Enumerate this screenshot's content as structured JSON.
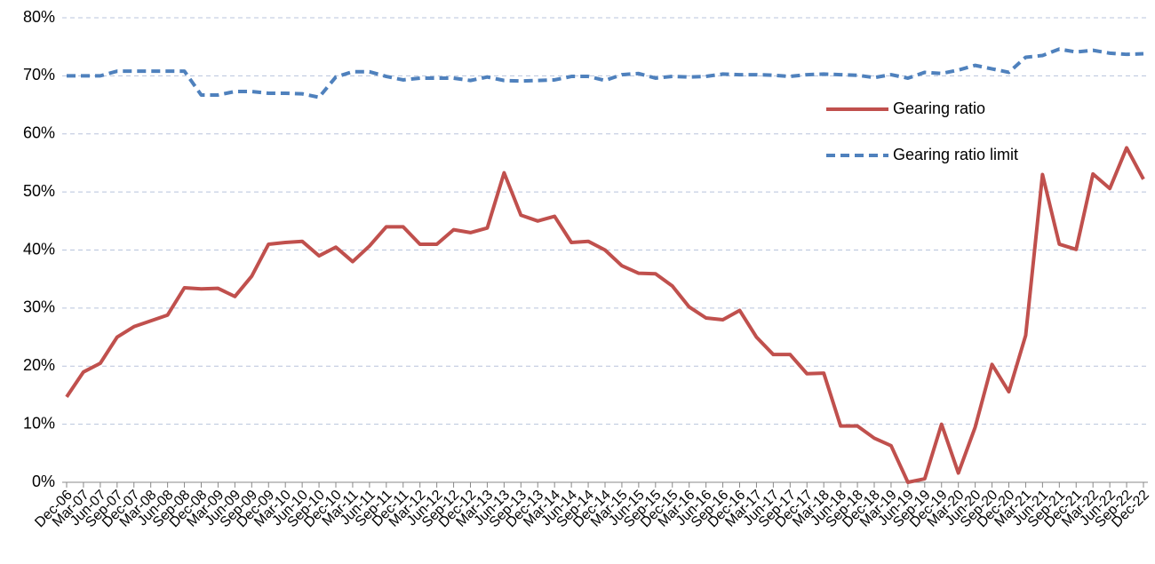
{
  "chart_data": {
    "type": "line",
    "categories": [
      "Dec-06",
      "Mar-07",
      "Jun-07",
      "Sep-07",
      "Dec-07",
      "Mar-08",
      "Jun-08",
      "Sep-08",
      "Dec-08",
      "Mar-09",
      "Jun-09",
      "Sep-09",
      "Dec-09",
      "Mar-10",
      "Jun-10",
      "Sep-10",
      "Dec-10",
      "Mar-11",
      "Jun-11",
      "Sep-11",
      "Dec-11",
      "Mar-12",
      "Jun-12",
      "Sep-12",
      "Dec-12",
      "Mar-13",
      "Jun-13",
      "Sep-13",
      "Dec-13",
      "Mar-14",
      "Jun-14",
      "Sep-14",
      "Dec-14",
      "Mar-15",
      "Jun-15",
      "Sep-15",
      "Dec-15",
      "Mar-16",
      "Jun-16",
      "Sep-16",
      "Dec-16",
      "Mar-17",
      "Jun-17",
      "Sep-17",
      "Dec-17",
      "Mar-18",
      "Jun-18",
      "Sep-18",
      "Dec-18",
      "Mar-19",
      "Jun-19",
      "Sep-19",
      "Dec-19",
      "Mar-20",
      "Jun-20",
      "Sep-20",
      "Dec-20",
      "Mar-21",
      "Jun-21",
      "Sep-21",
      "Dec-21",
      "Mar-22",
      "Jun-22",
      "Sep-22",
      "Dec-22"
    ],
    "series": [
      {
        "name": "Gearing ratio",
        "color": "#c0504d",
        "dash": false,
        "values": [
          14.7,
          19,
          20.5,
          25,
          26.8,
          27.8,
          28.8,
          33.5,
          33.3,
          33.4,
          32,
          35.5,
          41,
          41.3,
          41.5,
          39,
          40.5,
          38,
          40.7,
          44,
          44,
          41,
          41,
          43.5,
          43,
          43.8,
          53.3,
          46,
          45,
          45.8,
          41.3,
          41.5,
          40,
          37.3,
          36,
          35.9,
          33.8,
          30.2,
          28.3,
          28,
          29.6,
          25,
          22,
          22,
          18.7,
          18.8,
          9.7,
          9.7,
          7.6,
          6.3,
          0,
          0.6,
          10,
          1.6,
          9.5,
          20.3,
          15.6,
          25.3,
          53,
          41,
          40.1,
          53.1,
          50.6,
          57.6,
          52.2
        ]
      },
      {
        "name": "Gearing ratio limit",
        "color": "#4f81bd",
        "dash": true,
        "values": [
          70,
          70,
          70,
          70.8,
          70.8,
          70.8,
          70.8,
          70.8,
          66.7,
          66.7,
          67.3,
          67.3,
          67,
          67,
          66.9,
          66.3,
          69.8,
          70.7,
          70.7,
          69.9,
          69.3,
          69.6,
          69.6,
          69.6,
          69.2,
          69.8,
          69.2,
          69.1,
          69.2,
          69.3,
          69.9,
          69.9,
          69.2,
          70.2,
          70.4,
          69.6,
          69.9,
          69.8,
          69.9,
          70.3,
          70.2,
          70.2,
          70.1,
          69.9,
          70.2,
          70.3,
          70.2,
          70.1,
          69.7,
          70.2,
          69.6,
          70.6,
          70.4,
          71,
          71.8,
          71.2,
          70.6,
          73.2,
          73.5,
          74.6,
          74.1,
          74.4,
          73.9,
          73.7,
          73.8
        ]
      }
    ],
    "ylim": [
      0,
      80
    ],
    "yticks": [
      {
        "value": 0,
        "label": "0%"
      },
      {
        "value": 10,
        "label": "10%"
      },
      {
        "value": 20,
        "label": "20%"
      },
      {
        "value": 30,
        "label": "30%"
      },
      {
        "value": 40,
        "label": "40%"
      },
      {
        "value": 50,
        "label": "50%"
      },
      {
        "value": 60,
        "label": "60%"
      },
      {
        "value": 70,
        "label": "70%"
      },
      {
        "value": 80,
        "label": "80%"
      }
    ],
    "grid": true,
    "legend": "upper-right"
  }
}
